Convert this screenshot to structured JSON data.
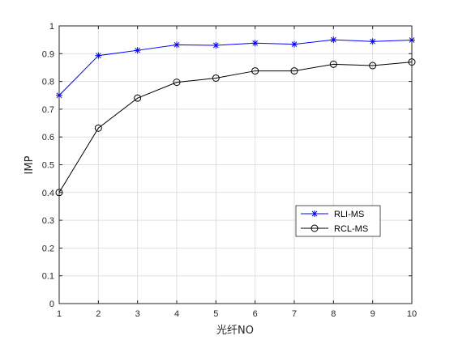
{
  "chart_data": {
    "type": "line",
    "xlabel": "光纤NO",
    "ylabel": "IMP",
    "x": [
      1,
      2,
      3,
      4,
      5,
      6,
      7,
      8,
      9,
      10
    ],
    "xlim": [
      1,
      10
    ],
    "ylim": [
      0,
      1
    ],
    "xticks": [
      "1",
      "2",
      "3",
      "4",
      "5",
      "6",
      "7",
      "8",
      "9",
      "10"
    ],
    "yticks": [
      "0",
      "0.1",
      "0.2",
      "0.3",
      "0.4",
      "0.5",
      "0.6",
      "0.7",
      "0.8",
      "0.9",
      "1"
    ],
    "grid": true,
    "legend_position": "lower-right",
    "series": [
      {
        "name": "RLI-MS",
        "color": "#0000ff",
        "marker": "star",
        "values": [
          0.75,
          0.893,
          0.912,
          0.932,
          0.93,
          0.938,
          0.934,
          0.95,
          0.944,
          0.949
        ]
      },
      {
        "name": "RCL-MS",
        "color": "#000000",
        "marker": "circle",
        "values": [
          0.4,
          0.632,
          0.74,
          0.797,
          0.812,
          0.838,
          0.838,
          0.862,
          0.857,
          0.87
        ]
      }
    ]
  }
}
